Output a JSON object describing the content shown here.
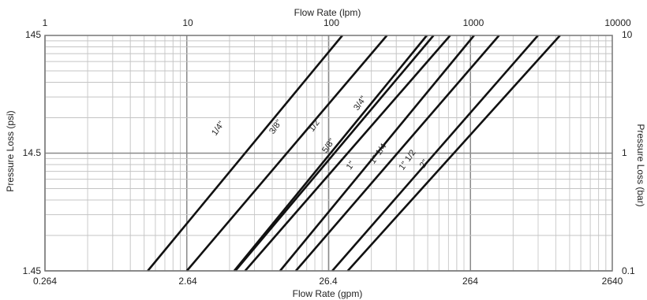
{
  "chart_data": {
    "type": "line",
    "x_scale": "log",
    "y_scale": "log",
    "grid": true,
    "axes": {
      "bottom": {
        "label": "Flow Rate (gpm)",
        "range": [
          0.264,
          2640
        ],
        "ticks": [
          "0.264",
          "2.64",
          "26.4",
          "264",
          "2640"
        ]
      },
      "top": {
        "label": "Flow Rate (lpm)",
        "range": [
          1,
          10000
        ],
        "ticks": [
          "1",
          "10",
          "100",
          "1000",
          "10000"
        ]
      },
      "left": {
        "label": "Pressure Loss (psi)",
        "range": [
          1.45,
          145
        ],
        "ticks": [
          "1.45",
          "14.5",
          "145"
        ]
      },
      "right": {
        "label": "Pressure Loss (bar)",
        "range": [
          0.1,
          10
        ],
        "ticks": [
          "0.1",
          "1",
          "10"
        ]
      }
    },
    "series": [
      {
        "name": "1/4\"",
        "points": [
          [
            1.4,
            1.45
          ],
          [
            33,
            145
          ]
        ]
      },
      {
        "name": "3/8\"",
        "points": [
          [
            2.64,
            1.45
          ],
          [
            68,
            145
          ]
        ]
      },
      {
        "name": "1/2\"",
        "points": [
          [
            5.7,
            1.45
          ],
          [
            130,
            145
          ]
        ]
      },
      {
        "name": "5/8\"",
        "points": [
          [
            5.8,
            1.45
          ],
          [
            145,
            145
          ]
        ]
      },
      {
        "name": "3/4\"",
        "points": [
          [
            6.8,
            1.45
          ],
          [
            190,
            145
          ]
        ]
      },
      {
        "name": "1\"",
        "points": [
          [
            12,
            1.45
          ],
          [
            280,
            145
          ]
        ]
      },
      {
        "name": "1\" 1/4",
        "points": [
          [
            15.5,
            1.45
          ],
          [
            420,
            145
          ]
        ]
      },
      {
        "name": "1\" 1/2",
        "points": [
          [
            28,
            1.45
          ],
          [
            790,
            145
          ]
        ]
      },
      {
        "name": "2\"",
        "points": [
          [
            36,
            1.45
          ],
          [
            1130,
            145
          ]
        ]
      }
    ]
  }
}
